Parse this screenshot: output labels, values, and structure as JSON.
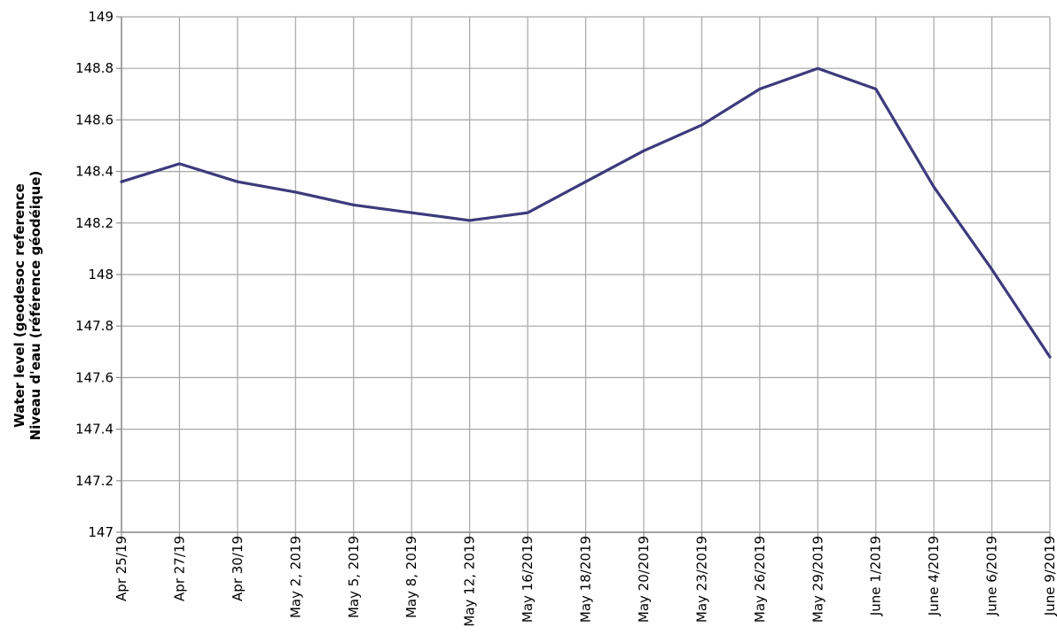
{
  "chart_data": {
    "type": "line",
    "title": "",
    "xlabel": "",
    "ylabel_lines": [
      "Water level (geodesoc reference",
      "Niveau d'eau (référence géodéique)"
    ],
    "categories": [
      "Apr 25/19",
      "Apr 27/19",
      "Apr 30/19",
      "May 2, 2019",
      "May 5, 2019",
      "May 8, 2019",
      "May 12, 2019",
      "May 16/2019",
      "May 18/2019",
      "May 20/2019",
      "May 23/2019",
      "May 26/2019",
      "May 29/2019",
      "June 1/2019",
      "June 4/2019",
      "June 6/2019",
      "June 9/2019"
    ],
    "series": [
      {
        "values": [
          148.36,
          148.43,
          148.36,
          148.32,
          148.27,
          148.24,
          148.21,
          148.24,
          148.36,
          148.48,
          148.58,
          148.72,
          148.8,
          148.72,
          148.34,
          148.02,
          147.68
        ]
      }
    ],
    "ylim": [
      147,
      149
    ],
    "yticks": [
      "147",
      "147.2",
      "147.4",
      "147.6",
      "147.8",
      "148",
      "148.2",
      "148.4",
      "148.6",
      "148.8",
      "149"
    ],
    "grid": true,
    "legend": "none",
    "colors": {
      "line": "#3d3a7c",
      "grid": "#a6a6a6",
      "axis": "#8c8c8c"
    }
  }
}
